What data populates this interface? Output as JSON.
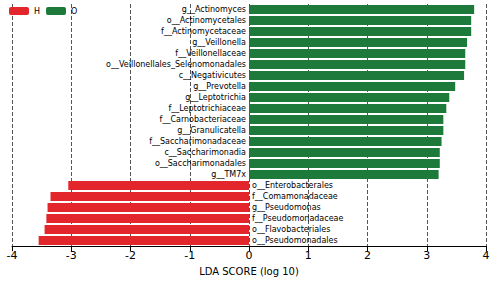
{
  "chart_data": {
    "type": "bar",
    "orientation": "horizontal",
    "x_label": "LDA SCORE (log 10)",
    "categories": [
      "g__Actinomyces",
      "o__Actinomycetales",
      "f__Actinomycetaceae",
      "g__Veillonella",
      "f__Veillonellaceae",
      "o__Veillonellales_Selenomonadales",
      "c__Negativicutes",
      "g__Prevotella",
      "g__Leptotrichia",
      "f__Leptotrichiaceae",
      "f__Carnobacteriaceae",
      "g__Granulicatella",
      "f__Saccharimonadaceae",
      "c__Saccharimonadia",
      "o__Saccharimonadales",
      "g__TM7x",
      "o__Enterobacterales",
      "f__Comamonadaceae",
      "g__Pseudomonas",
      "f__Pseudomonadaceae",
      "o__Flavobacteriales",
      "o__Pseudomonadales"
    ],
    "series": [
      {
        "name": "H",
        "color": "#e3262b",
        "values": [
          null,
          null,
          null,
          null,
          null,
          null,
          null,
          null,
          null,
          null,
          null,
          null,
          null,
          null,
          null,
          null,
          -3.05,
          -3.35,
          -3.4,
          -3.42,
          -3.45,
          -3.55
        ]
      },
      {
        "name": "O",
        "color": "#1e7a3a",
        "values": [
          3.8,
          3.75,
          3.75,
          3.68,
          3.65,
          3.65,
          3.63,
          3.48,
          3.38,
          3.33,
          3.28,
          3.28,
          3.25,
          3.22,
          3.22,
          3.2,
          null,
          null,
          null,
          null,
          null,
          null
        ]
      }
    ],
    "xlim": [
      -4,
      4
    ],
    "xticks": [
      -4,
      -3,
      -2,
      -1,
      0,
      1,
      2,
      3,
      4
    ],
    "grid": true,
    "legend": "top-left",
    "tick_labels": "x"
  }
}
